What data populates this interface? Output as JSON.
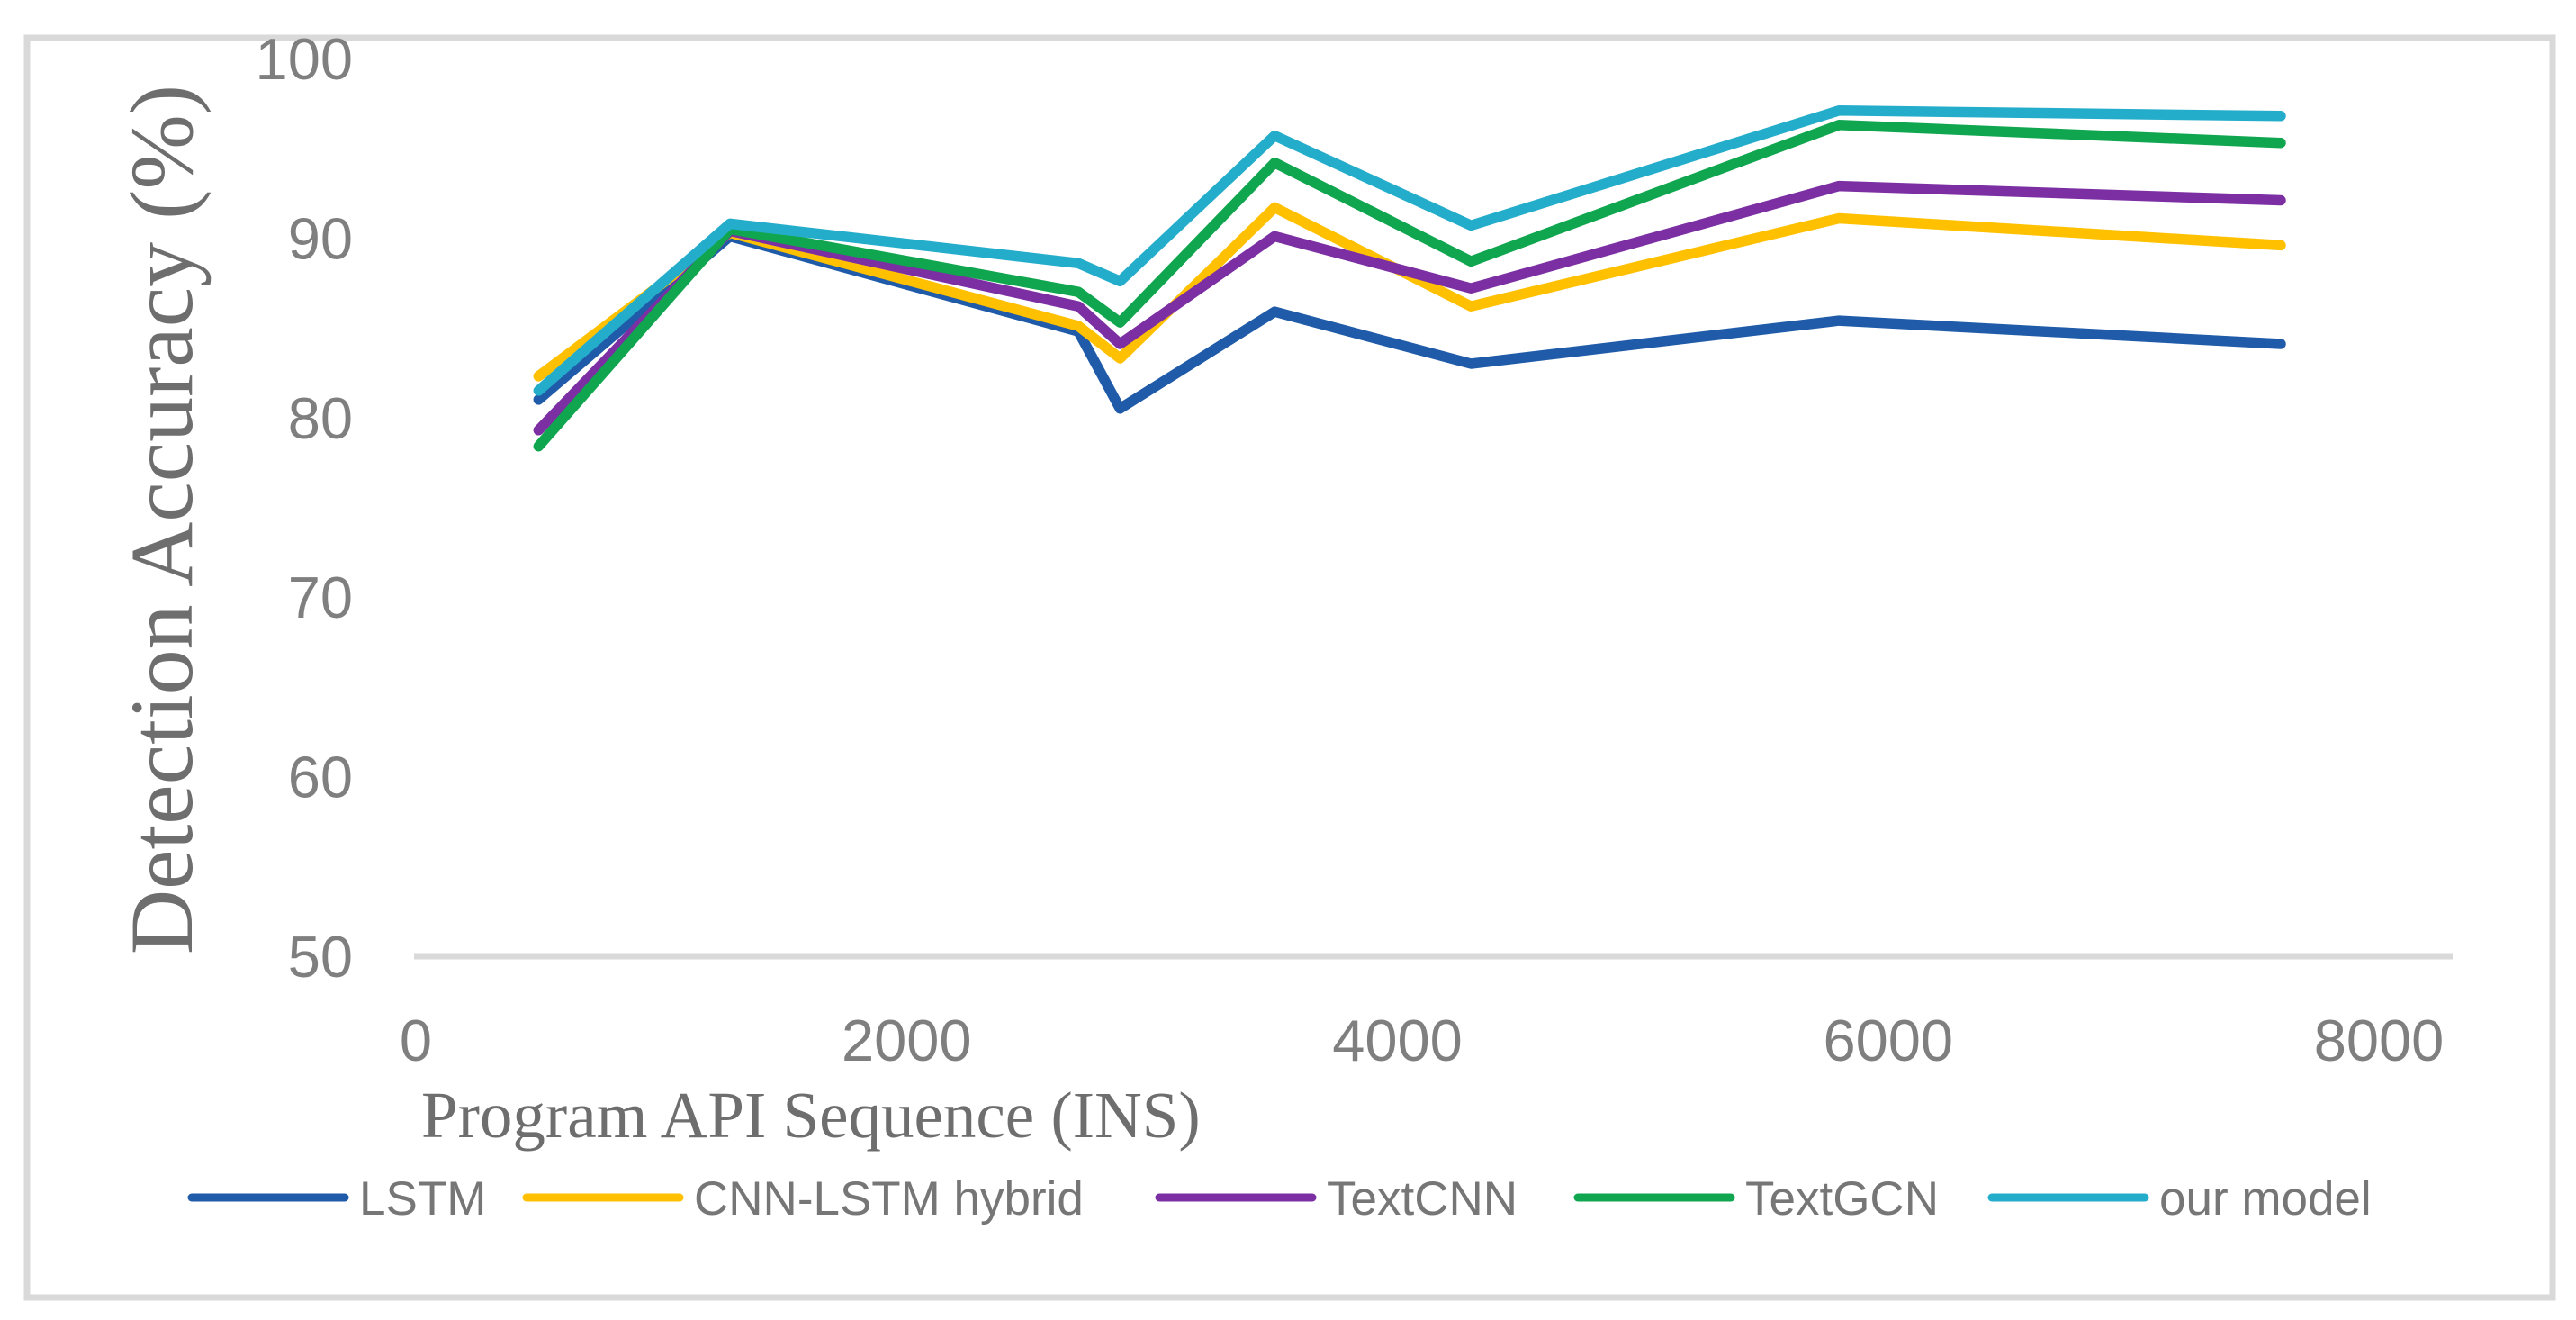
{
  "figure": {
    "background_color": "#FFFFFF",
    "border_color": "#D9D9D9"
  },
  "chart_data": {
    "type": "line",
    "title": "",
    "xlabel": "Program API Sequence (INS)",
    "ylabel": "Detection Accuracy (%)",
    "xlim": [
      0,
      8000
    ],
    "ylim": [
      50,
      100
    ],
    "x_ticks": [
      "0",
      "2000",
      "4000",
      "6000",
      "8000"
    ],
    "y_ticks": [
      "50",
      "60",
      "70",
      "80",
      "90",
      "100"
    ],
    "grid": "bottom-axis-line-only",
    "legend_position": "bottom",
    "x": [
      500,
      1280,
      2700,
      2870,
      3500,
      4300,
      5800,
      7600
    ],
    "series": [
      {
        "name": "LSTM",
        "color": "#1F5BA8",
        "values": [
          81.0,
          90.1,
          84.8,
          80.5,
          85.9,
          83.0,
          85.4,
          84.1
        ]
      },
      {
        "name": "CNN-LSTM hybrid",
        "color": "#FFC000",
        "values": [
          82.3,
          90.3,
          85.1,
          83.3,
          91.7,
          86.2,
          91.1,
          89.6
        ]
      },
      {
        "name": "TextCNN",
        "color": "#7B2FA3",
        "values": [
          79.3,
          90.4,
          86.2,
          84.1,
          90.1,
          87.2,
          92.9,
          92.1
        ]
      },
      {
        "name": "TextGCN",
        "color": "#10A64F",
        "values": [
          78.4,
          90.5,
          87.0,
          85.3,
          94.2,
          88.7,
          96.3,
          95.3
        ]
      },
      {
        "name": "our model",
        "color": "#24ADCB",
        "values": [
          81.5,
          90.8,
          88.6,
          87.6,
          95.7,
          90.7,
          97.1,
          96.8
        ]
      }
    ],
    "axis_line_color": "#D9D9D9",
    "tick_label_color": "#7F7F7F",
    "axis_title_color": "#6E6E6E",
    "legend_label_color": "#767676"
  }
}
